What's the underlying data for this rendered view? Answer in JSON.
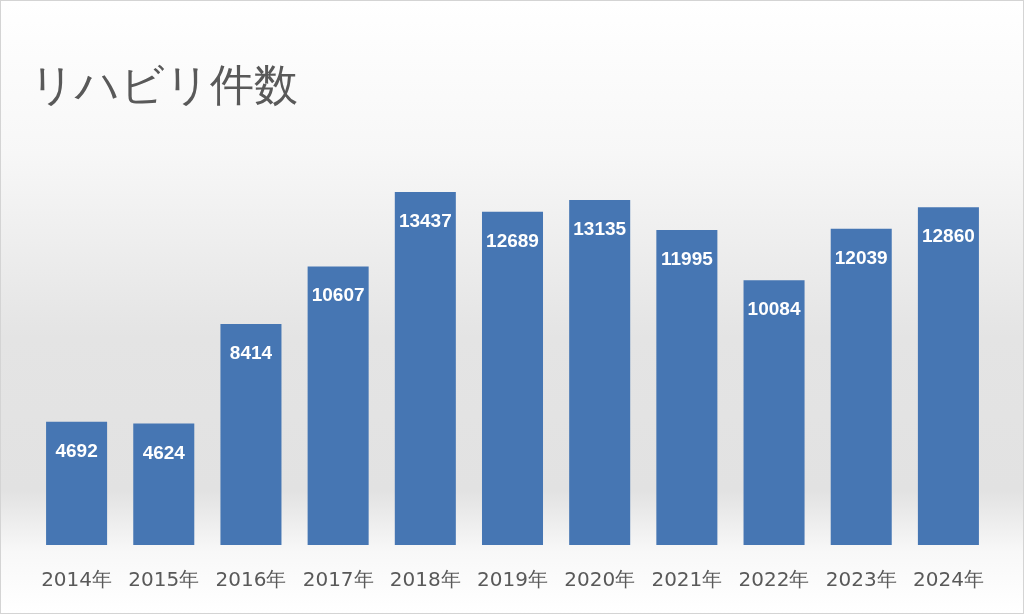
{
  "chart_data": {
    "type": "bar",
    "title": "リハビリ件数",
    "categories": [
      "2014年",
      "2015年",
      "2016年",
      "2017年",
      "2018年",
      "2019年",
      "2020年",
      "2021年",
      "2022年",
      "2023年",
      "2024年"
    ],
    "values": [
      4692,
      4624,
      8414,
      10607,
      13437,
      12689,
      13135,
      11995,
      10084,
      12039,
      12860
    ],
    "color": "#4676b3",
    "data_labels": true,
    "tick_labels": "x",
    "grid": false
  }
}
